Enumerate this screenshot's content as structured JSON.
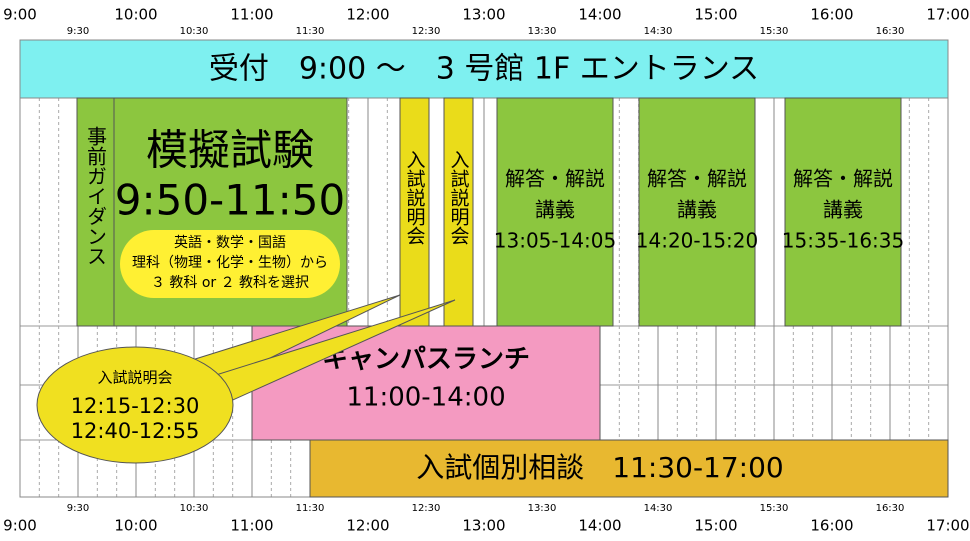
{
  "axis": {
    "hours": [
      "9:00",
      "10:00",
      "11:00",
      "12:00",
      "13:00",
      "14:00",
      "15:00",
      "16:00",
      "17:00"
    ],
    "half_hours": [
      "9:30",
      "10:30",
      "11:30",
      "12:30",
      "13:30",
      "14:30",
      "15:30",
      "16:30"
    ]
  },
  "reception": {
    "label": "受付　9:00 ～　3 号館 1F エントランス"
  },
  "guidance": {
    "label": "事前ガイダンス"
  },
  "mock_exam": {
    "title": "模擬試験",
    "time": "9:50-11:50",
    "subjects": [
      "英語・数学・国語",
      "理科（物理・化学・生物）から",
      "３ 教科 or ２ 教科を選択"
    ]
  },
  "info_sessions": [
    {
      "label": "入試説明会"
    },
    {
      "label": "入試説明会"
    }
  ],
  "lectures": [
    {
      "title": "解答・解説",
      "subtitle": "講義",
      "time": "13:05-14:05"
    },
    {
      "title": "解答・解説",
      "subtitle": "講義",
      "time": "14:20-15:20"
    },
    {
      "title": "解答・解説",
      "subtitle": "講義",
      "time": "15:35-16:35"
    }
  ],
  "lunch": {
    "title": "キャンパスランチ",
    "time": "11:00-14:00"
  },
  "consultation": {
    "label": "入試個別相談　11:30-17:00"
  },
  "bubble": {
    "title": "入試説明会",
    "times": [
      "12:15-12:30",
      "12:40-12:55"
    ]
  }
}
